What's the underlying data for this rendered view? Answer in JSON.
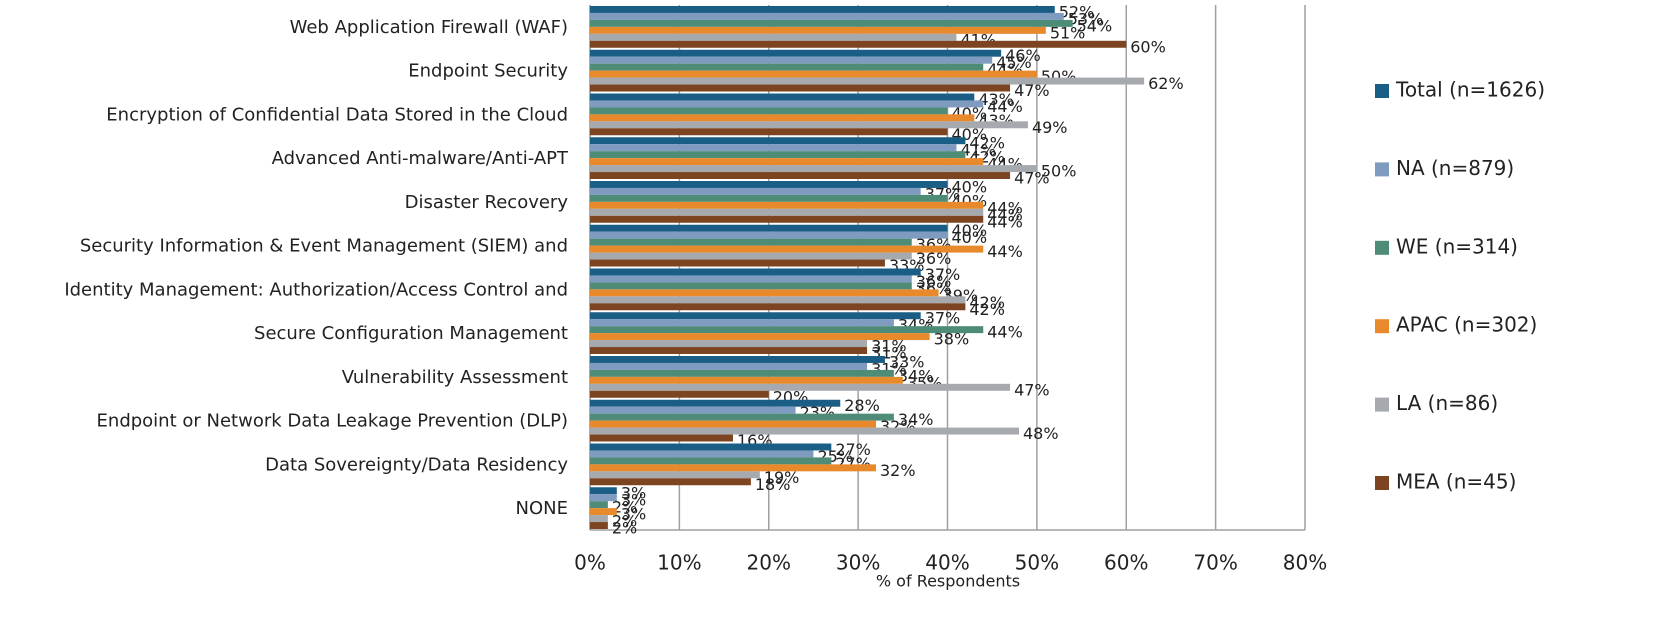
{
  "chart_data": {
    "type": "hbar",
    "xlabel": "% of Respondents",
    "categories": [
      "Web Application Firewall (WAF)",
      "Endpoint Security",
      "Encryption of Confidential Data Stored in the Cloud",
      "Advanced Anti-malware/Anti-APT",
      "Disaster Recovery",
      "Security Information & Event Management (SIEM) and",
      "Identity Management: Authorization/Access Control and",
      "Secure Configuration Management",
      "Vulnerability Assessment",
      "Endpoint or Network Data Leakage Prevention (DLP)",
      "Data Sovereignty/Data Residency",
      "NONE"
    ],
    "series": [
      {
        "name": "Total (n=1626)",
        "color": "#1a5e86",
        "values": [
          52,
          46,
          43,
          42,
          40,
          40,
          37,
          37,
          33,
          28,
          27,
          3
        ],
        "value_labels": [
          "52%",
          "46%",
          "43%",
          "42%",
          "40%",
          "40%",
          "37%",
          "37%",
          "33%",
          "28%",
          "27%",
          "3%"
        ]
      },
      {
        "name": "NA (n=879)",
        "color": "#7f9bbf",
        "values": [
          53,
          45,
          44,
          41,
          37,
          40,
          36,
          34,
          31,
          23,
          25,
          3
        ],
        "value_labels": [
          "53%",
          "45%",
          "44%",
          "41%",
          "37%",
          "40%",
          "36%",
          "34%",
          "31%",
          "23%",
          "25%",
          "3%"
        ]
      },
      {
        "name": "WE (n=314)",
        "color": "#4e8c78",
        "values": [
          54,
          44,
          40,
          42,
          40,
          36,
          36,
          44,
          34,
          34,
          27,
          2
        ],
        "value_labels": [
          "54%",
          "44%",
          "40%",
          "42%",
          "40%",
          "36%",
          "36%",
          "44%",
          "34%",
          "34%",
          "27%",
          "2%"
        ]
      },
      {
        "name": "APAC (n=302)",
        "color": "#e8892b",
        "values": [
          51,
          50,
          43,
          44,
          44,
          44,
          39,
          38,
          35,
          32,
          32,
          3
        ],
        "value_labels": [
          "51%",
          "50%",
          "43%",
          "44%",
          "44%",
          "44%",
          "39%",
          "38%",
          "35%",
          "32%",
          "32%",
          "3%"
        ]
      },
      {
        "name": "LA (n=86)",
        "color": "#a6a9ad",
        "values": [
          41,
          62,
          49,
          50,
          44,
          36,
          42,
          31,
          47,
          48,
          19,
          2
        ],
        "value_labels": [
          "41%",
          "62%",
          "49%",
          "50%",
          "44%",
          "36%",
          "42%",
          "31%",
          "47%",
          "48%",
          "19%",
          "2%"
        ]
      },
      {
        "name": "MEA (n=45)",
        "color": "#7d4422",
        "values": [
          60,
          47,
          40,
          47,
          44,
          33,
          42,
          31,
          20,
          16,
          18,
          2
        ],
        "value_labels": [
          "60%",
          "47%",
          "40%",
          "47%",
          "44%",
          "33%",
          "42%",
          "31%",
          "20%",
          "16%",
          "18%",
          "2%"
        ]
      }
    ],
    "xlim": [
      0,
      80
    ],
    "xticks": [
      {
        "value": 0,
        "label": "0%"
      },
      {
        "value": 10,
        "label": "10%"
      },
      {
        "value": 20,
        "label": "20%"
      },
      {
        "value": 30,
        "label": "30%"
      },
      {
        "value": 40,
        "label": "40%"
      },
      {
        "value": 50,
        "label": "50%"
      },
      {
        "value": 60,
        "label": "60%"
      },
      {
        "value": 70,
        "label": "70%"
      },
      {
        "value": 80,
        "label": "80%"
      }
    ],
    "grid": true,
    "legend": "right"
  }
}
